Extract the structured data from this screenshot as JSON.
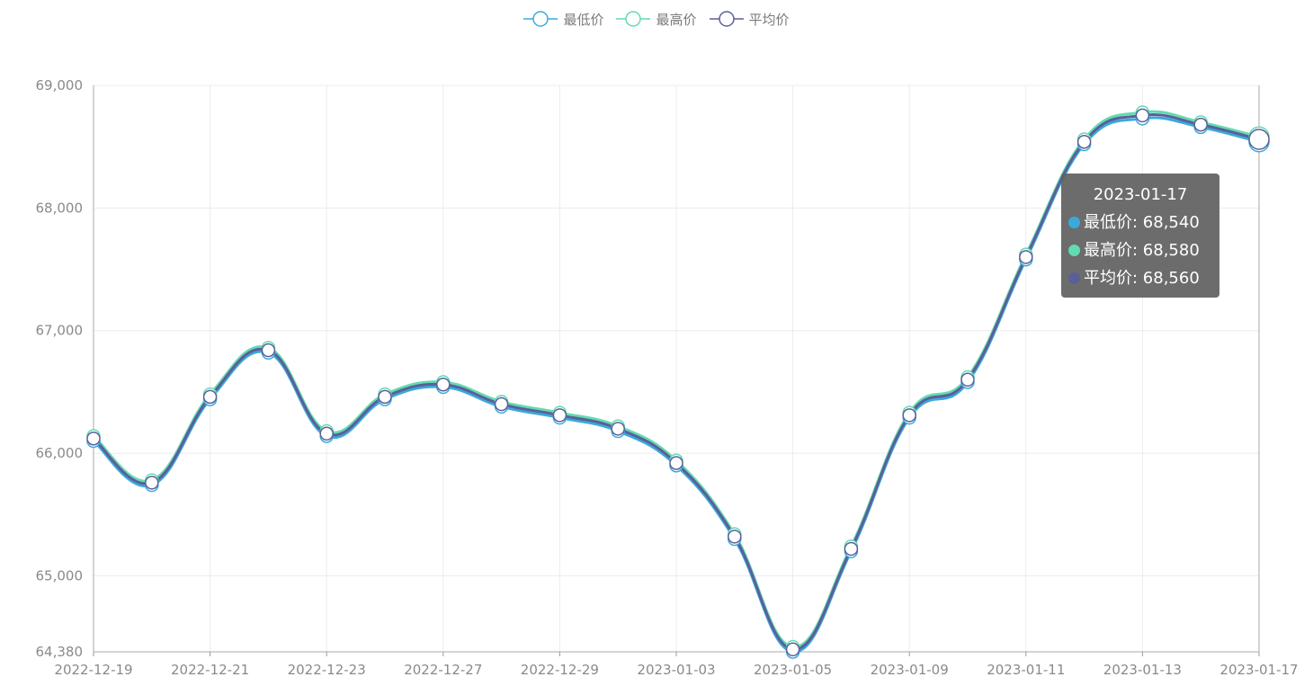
{
  "legend": [
    {
      "name": "最低价",
      "color": "#3ba9dc"
    },
    {
      "name": "最高价",
      "color": "#62dbb1"
    },
    {
      "name": "平均价",
      "color": "#5b5f99"
    }
  ],
  "tooltip": {
    "title": "2023-01-17",
    "rows": [
      {
        "label": "最低价: 68,540",
        "color": "#3ba9dc"
      },
      {
        "label": "最高价: 68,580",
        "color": "#62dbb1"
      },
      {
        "label": "平均价: 68,560",
        "color": "#5b5f99"
      }
    ]
  },
  "chart_data": {
    "type": "line",
    "x": [
      "2022-12-19",
      "2022-12-20",
      "2022-12-21",
      "2022-12-22",
      "2022-12-23",
      "2022-12-26",
      "2022-12-27",
      "2022-12-28",
      "2022-12-29",
      "2022-12-30",
      "2023-01-03",
      "2023-01-04",
      "2023-01-05",
      "2023-01-06",
      "2023-01-09",
      "2023-01-10",
      "2023-01-11",
      "2023-01-12",
      "2023-01-13",
      "2023-01-16",
      "2023-01-17"
    ],
    "x_tick_labels": [
      "2022-12-19",
      "2022-12-21",
      "2022-12-23",
      "2022-12-27",
      "2022-12-29",
      "2023-01-03",
      "2023-01-05",
      "2023-01-09",
      "2023-01-11",
      "2023-01-13",
      "2023-01-17"
    ],
    "y_tick_labels": [
      "64,380",
      "65,000",
      "66,000",
      "67,000",
      "68,000",
      "69,000"
    ],
    "y_ticks": [
      64380,
      65000,
      66000,
      67000,
      68000,
      69000
    ],
    "ylim": [
      64380,
      69000
    ],
    "series": [
      {
        "name": "最低价",
        "color": "#3ba9dc",
        "values": [
          66100,
          65740,
          66440,
          66820,
          66140,
          66440,
          66540,
          66380,
          66290,
          66180,
          65900,
          65300,
          64380,
          65200,
          66290,
          66580,
          67580,
          68520,
          68730,
          68660,
          68540
        ]
      },
      {
        "name": "最高价",
        "color": "#62dbb1",
        "values": [
          66140,
          65780,
          66480,
          66860,
          66180,
          66480,
          66580,
          66420,
          66330,
          66220,
          65940,
          65340,
          64420,
          65240,
          66330,
          66620,
          67620,
          68560,
          68780,
          68700,
          68580
        ]
      },
      {
        "name": "平均价",
        "color": "#5b5f99",
        "values": [
          66120,
          65760,
          66460,
          66840,
          66160,
          66460,
          66560,
          66400,
          66310,
          66200,
          65920,
          65320,
          64400,
          65220,
          66310,
          66600,
          67600,
          68540,
          68755,
          68680,
          68560
        ]
      }
    ],
    "grid": true,
    "legend_position": "top"
  }
}
